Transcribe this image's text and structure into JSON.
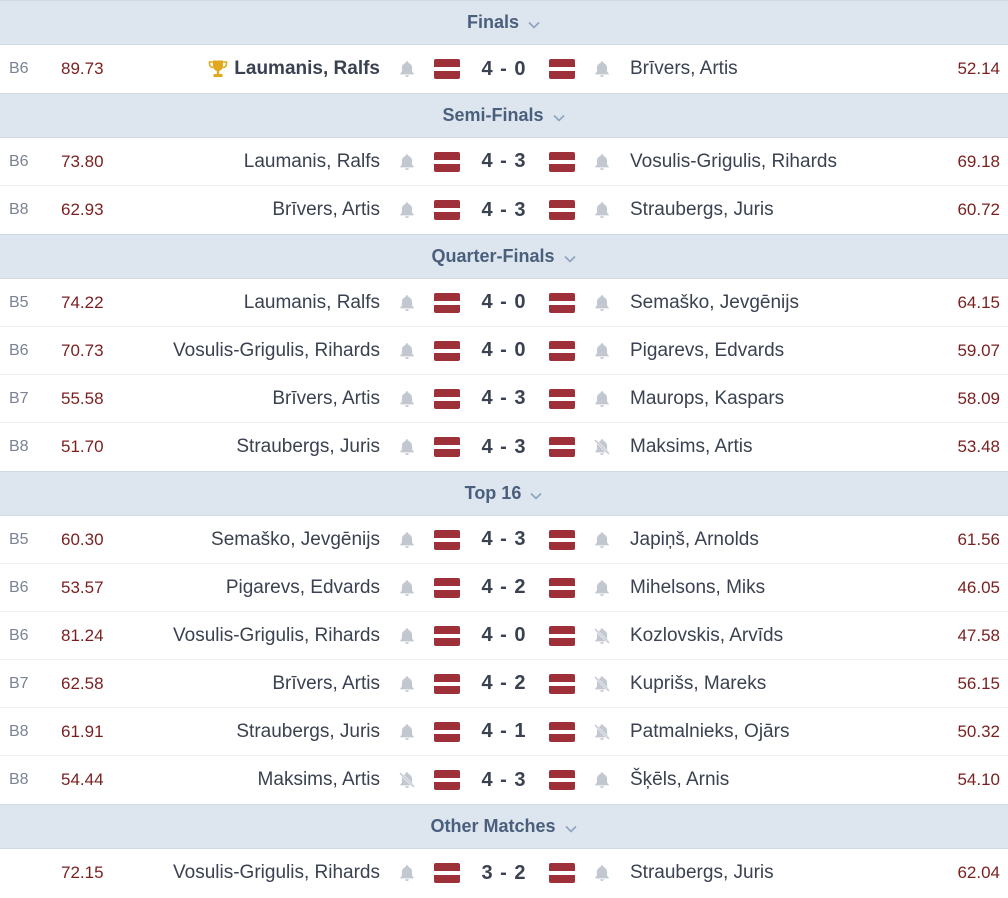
{
  "colors": {
    "header_bg": "#dde5ef",
    "average": "#7a1f1f",
    "flag_red": "#9e3039",
    "trophy": "#e0a81a"
  },
  "sections": [
    {
      "title": "Finals",
      "matches": [
        {
          "round": "B6",
          "avg1": "89.73",
          "p1": "Laumanis, Ralfs",
          "winner": true,
          "mute1": false,
          "score": "4 - 0",
          "mute2": false,
          "p2": "Brīvers, Artis",
          "avg2": "52.14"
        }
      ]
    },
    {
      "title": "Semi-Finals",
      "matches": [
        {
          "round": "B6",
          "avg1": "73.80",
          "p1": "Laumanis, Ralfs",
          "mute1": false,
          "score": "4 - 3",
          "mute2": false,
          "p2": "Vosulis-Grigulis, Rihards",
          "avg2": "69.18"
        },
        {
          "round": "B8",
          "avg1": "62.93",
          "p1": "Brīvers, Artis",
          "mute1": false,
          "score": "4 - 3",
          "mute2": false,
          "p2": "Straubergs, Juris",
          "avg2": "60.72"
        }
      ]
    },
    {
      "title": "Quarter-Finals",
      "matches": [
        {
          "round": "B5",
          "avg1": "74.22",
          "p1": "Laumanis, Ralfs",
          "mute1": false,
          "score": "4 - 0",
          "mute2": false,
          "p2": "Semaško, Jevgēnijs",
          "avg2": "64.15"
        },
        {
          "round": "B6",
          "avg1": "70.73",
          "p1": "Vosulis-Grigulis, Rihards",
          "mute1": false,
          "score": "4 - 0",
          "mute2": false,
          "p2": "Pigarevs, Edvards",
          "avg2": "59.07"
        },
        {
          "round": "B7",
          "avg1": "55.58",
          "p1": "Brīvers, Artis",
          "mute1": false,
          "score": "4 - 3",
          "mute2": false,
          "p2": "Maurops, Kaspars",
          "avg2": "58.09"
        },
        {
          "round": "B8",
          "avg1": "51.70",
          "p1": "Straubergs, Juris",
          "mute1": false,
          "score": "4 - 3",
          "mute2": true,
          "p2": "Maksims, Artis",
          "avg2": "53.48"
        }
      ]
    },
    {
      "title": "Top 16",
      "matches": [
        {
          "round": "B5",
          "avg1": "60.30",
          "p1": "Semaško, Jevgēnijs",
          "mute1": false,
          "score": "4 - 3",
          "mute2": false,
          "p2": "Japiņš, Arnolds",
          "avg2": "61.56"
        },
        {
          "round": "B6",
          "avg1": "53.57",
          "p1": "Pigarevs, Edvards",
          "mute1": false,
          "score": "4 - 2",
          "mute2": false,
          "p2": "Mihelsons, Miks",
          "avg2": "46.05"
        },
        {
          "round": "B6",
          "avg1": "81.24",
          "p1": "Vosulis-Grigulis, Rihards",
          "mute1": false,
          "score": "4 - 0",
          "mute2": true,
          "p2": "Kozlovskis, Arvīds",
          "avg2": "47.58"
        },
        {
          "round": "B7",
          "avg1": "62.58",
          "p1": "Brīvers, Artis",
          "mute1": false,
          "score": "4 - 2",
          "mute2": true,
          "p2": "Kuprišs, Mareks",
          "avg2": "56.15"
        },
        {
          "round": "B8",
          "avg1": "61.91",
          "p1": "Straubergs, Juris",
          "mute1": false,
          "score": "4 - 1",
          "mute2": true,
          "p2": "Patmalnieks, Ojārs",
          "avg2": "50.32"
        },
        {
          "round": "B8",
          "avg1": "54.44",
          "p1": "Maksims, Artis",
          "mute1": true,
          "score": "4 - 3",
          "mute2": false,
          "p2": "Šķēls, Arnis",
          "avg2": "54.10"
        }
      ]
    },
    {
      "title": "Other Matches",
      "matches": [
        {
          "round": "",
          "avg1": "72.15",
          "p1": "Vosulis-Grigulis, Rihards",
          "mute1": false,
          "score": "3 - 2",
          "mute2": false,
          "p2": "Straubergs, Juris",
          "avg2": "62.04"
        }
      ]
    }
  ]
}
